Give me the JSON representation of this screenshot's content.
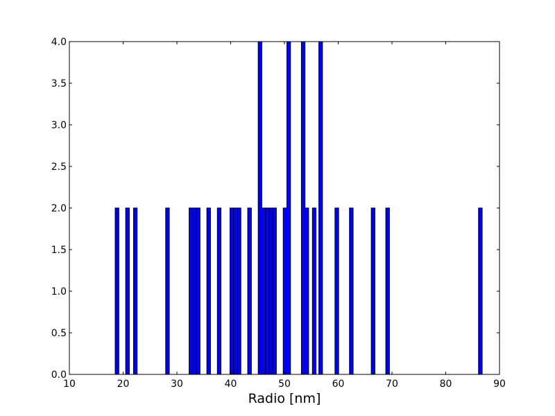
{
  "chart_data": {
    "type": "bar",
    "title": "",
    "xlabel": "Radio [nm]",
    "ylabel": "",
    "xlim": [
      10,
      90
    ],
    "ylim": [
      0,
      4
    ],
    "x_ticks": [
      "10",
      "20",
      "30",
      "40",
      "50",
      "60",
      "70",
      "80",
      "90"
    ],
    "y_ticks": [
      "0.0",
      "0.5",
      "1.0",
      "1.5",
      "2.0",
      "2.5",
      "3.0",
      "3.5",
      "4.0"
    ],
    "bar_color": "#0000ff",
    "bar_edge_color": "#000000",
    "bin_width": 0.68,
    "bars": [
      {
        "x": 18.52,
        "value": 2
      },
      {
        "x": 20.47,
        "value": 2
      },
      {
        "x": 21.93,
        "value": 2
      },
      {
        "x": 27.91,
        "value": 2
      },
      {
        "x": 32.27,
        "value": 2
      },
      {
        "x": 32.95,
        "value": 2
      },
      {
        "x": 33.62,
        "value": 2
      },
      {
        "x": 35.57,
        "value": 2
      },
      {
        "x": 37.52,
        "value": 2
      },
      {
        "x": 39.87,
        "value": 2
      },
      {
        "x": 40.54,
        "value": 2
      },
      {
        "x": 41.22,
        "value": 2
      },
      {
        "x": 43.17,
        "value": 2
      },
      {
        "x": 45.12,
        "value": 4
      },
      {
        "x": 45.8,
        "value": 2
      },
      {
        "x": 46.47,
        "value": 2
      },
      {
        "x": 47.15,
        "value": 2
      },
      {
        "x": 47.82,
        "value": 2
      },
      {
        "x": 49.77,
        "value": 2
      },
      {
        "x": 50.45,
        "value": 4
      },
      {
        "x": 53.15,
        "value": 4
      },
      {
        "x": 53.82,
        "value": 2
      },
      {
        "x": 55.2,
        "value": 2
      },
      {
        "x": 56.4,
        "value": 4
      },
      {
        "x": 59.4,
        "value": 2
      },
      {
        "x": 62.1,
        "value": 2
      },
      {
        "x": 66.15,
        "value": 2
      },
      {
        "x": 68.85,
        "value": 2
      },
      {
        "x": 86.1,
        "value": 2
      }
    ]
  }
}
